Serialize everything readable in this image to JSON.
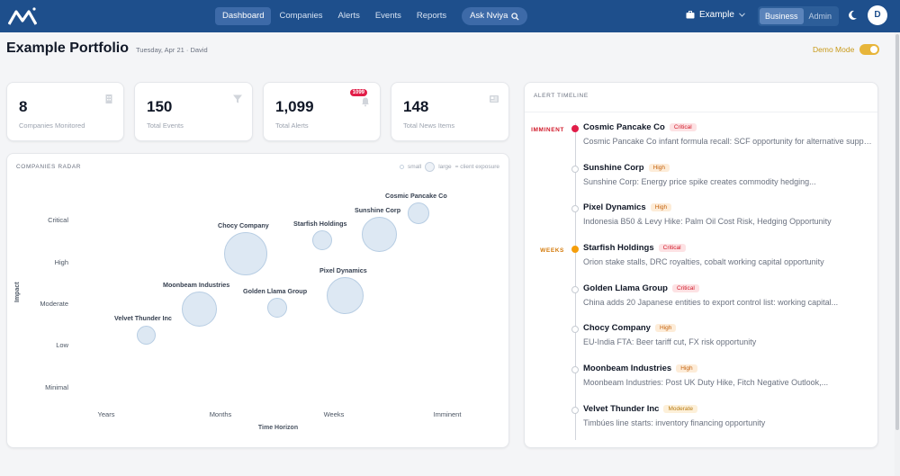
{
  "nav": {
    "items": [
      "Dashboard",
      "Companies",
      "Alerts",
      "Events",
      "Reports"
    ],
    "ask_label": "Ask Nviya",
    "workspace": "Example",
    "modes": [
      "Business",
      "Admin"
    ],
    "avatar": "D"
  },
  "header": {
    "title": "Example Portfolio",
    "subtitle": "Tuesday, Apr 21 · David",
    "demo_label": "Demo Mode"
  },
  "stats": [
    {
      "value": "8",
      "label": "Companies Monitored",
      "icon": "building-icon"
    },
    {
      "value": "150",
      "label": "Total Events",
      "icon": "filter-icon"
    },
    {
      "value": "1,099",
      "label": "Total Alerts",
      "icon": "bell-icon",
      "badge": "1099"
    },
    {
      "value": "148",
      "label": "Total News Items",
      "icon": "newspaper-icon"
    }
  ],
  "radar": {
    "title": "COMPANIES RADAR",
    "legend": {
      "small": "small",
      "large": "large",
      "note": "= client exposure"
    },
    "y_title": "Impact",
    "x_title": "Time Horizon",
    "y_labels": [
      "Critical",
      "High",
      "Moderate",
      "Low",
      "Minimal"
    ],
    "x_labels": [
      "Years",
      "Months",
      "Weeks",
      "Imminent"
    ],
    "bubbles": [
      {
        "name": "Cosmic Pancake Co"
      },
      {
        "name": "Sunshine Corp"
      },
      {
        "name": "Starfish Holdings"
      },
      {
        "name": "Chocy Company"
      },
      {
        "name": "Pixel Dynamics"
      },
      {
        "name": "Moonbeam Industries"
      },
      {
        "name": "Golden Llama Group"
      },
      {
        "name": "Velvet Thunder Inc"
      }
    ]
  },
  "timeline": {
    "title": "ALERT TIMELINE",
    "zones": {
      "imminent": "IMMINENT",
      "weeks": "WEEKS"
    },
    "colors": {
      "critical": "#e11d48",
      "weeks": "#f59e0b"
    },
    "items": [
      {
        "name": "Cosmic Pancake Co",
        "severity": "Critical",
        "desc": "Cosmic Pancake Co infant formula recall: SCF opportunity for alternative suppliers"
      },
      {
        "name": "Sunshine Corp",
        "severity": "High",
        "desc": "Sunshine Corp: Energy price spike creates commodity hedging..."
      },
      {
        "name": "Pixel Dynamics",
        "severity": "High",
        "desc": "Indonesia B50 & Levy Hike: Palm Oil Cost Risk, Hedging Opportunity"
      },
      {
        "name": "Starfish Holdings",
        "severity": "Critical",
        "desc": "Orion stake stalls, DRC royalties, cobalt working capital opportunity"
      },
      {
        "name": "Golden Llama Group",
        "severity": "Critical",
        "desc": "China adds 20 Japanese entities to export control list: working capital..."
      },
      {
        "name": "Chocy Company",
        "severity": "High",
        "desc": "EU-India FTA: Beer tariff cut, FX risk opportunity"
      },
      {
        "name": "Moonbeam Industries",
        "severity": "High",
        "desc": "Moonbeam Industries: Post UK Duty Hike, Fitch Negative Outlook,..."
      },
      {
        "name": "Velvet Thunder Inc",
        "severity": "Moderate",
        "desc": "Timbúes line starts: inventory financing opportunity"
      }
    ]
  }
}
